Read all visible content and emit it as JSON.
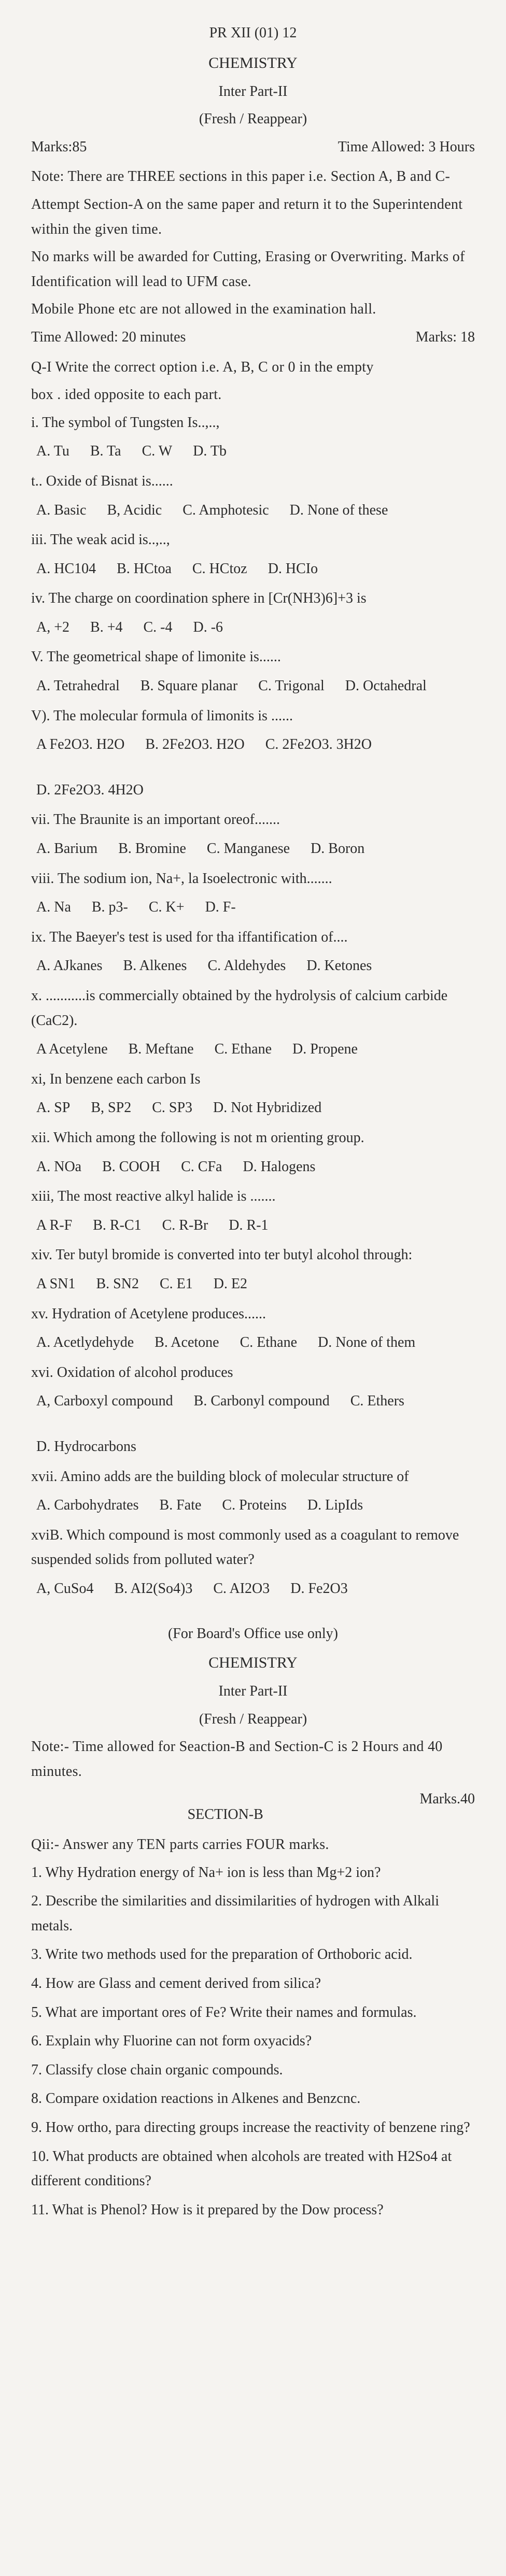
{
  "header": {
    "code": "PR XII (01) 12",
    "title": "CHEMISTRY",
    "subtitle1": "Inter Part-II",
    "subtitle2": "(Fresh / Reappear)"
  },
  "marks_row": {
    "left": "Marks:85",
    "right": "Time Allowed: 3 Hours"
  },
  "notes": [
    "Note: There are THREE sections in this paper i.e. Section A, B and C-",
    "Attempt Section-A on the same paper and return it to the Superintendent within the given time.",
    "No marks will be awarded for Cutting, Erasing or Overwriting. Marks of Identification will lead to UFM case.",
    "Mobile Phone etc are not allowed in the examination hall."
  ],
  "time_row": {
    "left": "Time Allowed: 20 minutes",
    "right": "Marks: 18"
  },
  "q1_intro": [
    "Q-I   Write the correct option i.e. A, B, C or 0 in the empty",
    "box    . ided opposite to each part."
  ],
  "mcqs": [
    {
      "q": "i.   The symbol of Tungsten Is..,..,",
      "opts": [
        "A.   Tu",
        "B. Ta",
        "C. W",
        "D.   Tb"
      ]
    },
    {
      "q": "t..    Oxide of Bisnat is......",
      "opts": [
        "A.   Basic",
        "B, Acidic",
        "C. Amphotesic",
        "D.   None of these"
      ]
    },
    {
      "q": "iii. The weak acid is..,..,",
      "opts": [
        "A.   HC104",
        "B. HCtoa",
        "C. HCtoz",
        "D.   HCIo"
      ]
    },
    {
      "q": "iv.   The charge on coordination sphere in  [Cr(NH3)6]+3 is",
      "opts": [
        "A,   +2",
        "B.   +4",
        "C. -4",
        "D.   -6"
      ]
    },
    {
      "q": "V.   The geometrical shape of limonite is......",
      "opts": [
        "A.   Tetrahedral",
        "B. Square planar",
        "C. Trigonal",
        "D.   Octahedral"
      ]
    },
    {
      "q": "V).   The molecular formula of limonits is ......",
      "opts": [
        "A   Fe2O3. H2O",
        "B.   2Fe2O3. H2O",
        "C.   2Fe2O3. 3H2O",
        "D.   2Fe2O3. 4H2O"
      ]
    },
    {
      "q": "vii.   The Braunite is an important oreof.......",
      "opts": [
        "A.   Barium",
        "B. Bromine",
        "C. Manganese",
        "D.   Boron"
      ]
    },
    {
      "q": "viii.   The sodium ion, Na+, la Isoelectronic with.......",
      "opts": [
        "A.   Na",
        "B.   p3-",
        "C.   K+",
        "D.   F-"
      ]
    },
    {
      "q": "ix.   The Baeyer's test is used for tha iffantification of....",
      "opts": [
        "A.   AJkanes",
        "B. Alkenes",
        "C. Aldehydes",
        "D.   Ketones"
      ]
    },
    {
      "q": "x.   ...........is commercially obtained by the hydrolysis of calcium carbide (CaC2).",
      "opts": [
        "A   Acetylene",
        "B. Meftane",
        "C. Ethane",
        "D.   Propene"
      ]
    },
    {
      "q": "xi,   In benzene each carbon Is",
      "opts": [
        "A.   SP",
        "B,   SP2",
        "C. SP3",
        "D. Not Hybridized"
      ]
    },
    {
      "q": "xii.   Which among the following is not m orienting group.",
      "opts": [
        "A.   NOa",
        "B. COOH",
        "C. CFa",
        "D.   Halogens"
      ]
    },
    {
      "q": "xiii,   The most reactive alkyl halide is .......",
      "opts": [
        "A   R-F",
        "B.   R-C1",
        "C. R-Br",
        "D. R-1"
      ]
    },
    {
      "q": "xiv.   Ter butyl bromide is converted into ter butyl alcohol through:",
      "opts": [
        "A   SN1",
        "B.   SN2",
        "C.   E1",
        "D.   E2"
      ]
    },
    {
      "q": "xv.   Hydration of Acetylene produces......",
      "opts": [
        "A.   Acetlydehyde",
        "B. Acetone",
        "C. Ethane",
        "D.   None of them"
      ]
    },
    {
      "q": "xvi.   Oxidation of alcohol produces",
      "opts": [
        "A,   Carboxyl compound",
        "B. Carbonyl compound",
        "C.   Ethers",
        "D.   Hydrocarbons"
      ]
    },
    {
      "q": "xvii.   Amino adds are the building block of molecular structure of",
      "opts": [
        "A.   Carbohydrates",
        "B.   Fate",
        "C.   Proteins",
        "D.   LipIds"
      ]
    },
    {
      "q": "xviB.   Which compound is most commonly used as a coagulant to remove suspended solids from polluted water?",
      "opts": [
        "A,   CuSo4",
        "B.   AI2(So4)3",
        "C.   AI2O3",
        "D.   Fe2O3"
      ]
    }
  ],
  "part2_header": {
    "office": "(For Board's Office use only)",
    "title": "CHEMISTRY",
    "sub1": "Inter Part-II",
    "sub2": "(Fresh / Reappear)"
  },
  "part2_note": "Note:- Time allowed for Seaction-B and Section-C is 2 Hours and 40 minutes.",
  "sectionB": {
    "title": "SECTION-B",
    "marks": "Marks.40"
  },
  "q2_intro": "Qii:-   Answer any TEN parts carries FOUR marks.",
  "short_qs": [
    "1.   Why Hydration energy of Na+ ion is less than Mg+2 ion?",
    "2.   Describe the similarities and dissimilarities of hydrogen with Alkali metals.",
    "3.   Write two methods used for the preparation of Orthoboric acid.",
    "4.   How are Glass and cement derived from silica?",
    "5.   What are important ores of Fe? Write their names and formulas.",
    "6.   Explain why Fluorine can not form oxyacids?",
    "7.   Classify close chain organic compounds.",
    "8.   Compare oxidation reactions in Alkenes and Benzcnc.",
    "9.   How ortho, para directing groups increase the reactivity of benzene ring?",
    "10.   What products are obtained when alcohols are treated with H2So4 at different conditions?",
    "11.   What is Phenol? How is it prepared by the Dow process?"
  ]
}
